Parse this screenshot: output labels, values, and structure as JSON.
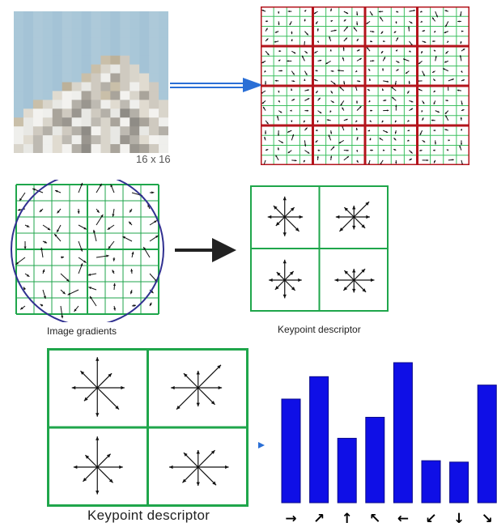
{
  "patch": {
    "size_label": "16 x 16",
    "sky_color": "#a9c7d8",
    "pixels": [
      "SSSSSSSSSSSSSSSS",
      "SSSSSSSSSSSSSSSS",
      "SSSSSSSSSSSSSSSS",
      "SSSSSSSSSSSSSSSS",
      "SSSSSSSSSSSSSSSS",
      "SSSSSSSSSTTLSSSS",
      "SSSSSSSSTLWLLSSS",
      "SSSSSSSTLWGLLLSS",
      "SSSSSTLWLGTLWLLS",
      "SSSSLWWGLTGWLGLS",
      "SSTLWWGDGWLGWLLL",
      "SLWWGLDWLGWDGLWL",
      "TWWLGDWWGLGWDGLW",
      "WWLGWLGDWLWGDWLG",
      "WLGWLGWDGLWDGLWW",
      "LWGWLWGDWLGWDGLW"
    ]
  },
  "top_grid": {
    "border_color": "#b3141c",
    "line_color": "#3cc060"
  },
  "gradient_panel": {
    "label": "Image gradients",
    "border_color": "#1fa64b",
    "circle_color": "#303090"
  },
  "keypoint_small": {
    "label": "Keypoint descriptor",
    "border_color": "#1fa64b"
  },
  "keypoint_large": {
    "label": "Keypoint descriptor",
    "border_color": "#1fa64b"
  },
  "connector_color": "#2a6fd6",
  "chart_data": {
    "type": "bar",
    "categories": [
      "→",
      "↗",
      "↑",
      "↖",
      "←",
      "↙",
      "↓",
      "↘"
    ],
    "values": [
      0.74,
      0.9,
      0.46,
      0.61,
      1.0,
      0.3,
      0.29,
      0.84
    ],
    "bar_color": "#0f0fe6",
    "title": "",
    "xlabel": "",
    "ylabel": ""
  }
}
